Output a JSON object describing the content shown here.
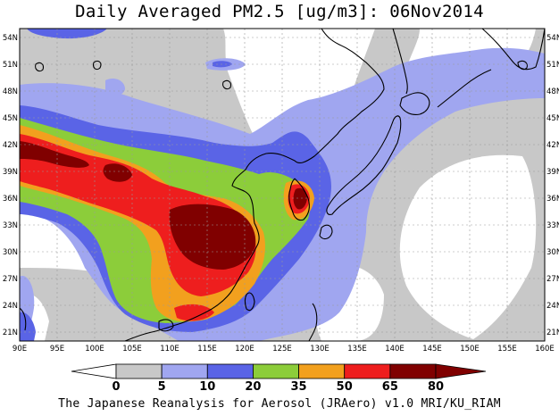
{
  "title": "Daily Averaged PM2.5 [ug/m3]: 06Nov2014",
  "footer": "The Japanese Reanalysis for Aerosol (JRAero) v1.0 MRI/KU_RIAM",
  "map": {
    "lon_range": [
      90,
      160
    ],
    "lat_range": [
      20,
      55
    ],
    "lon_labels": [
      "90E",
      "95E",
      "100E",
      "105E",
      "110E",
      "115E",
      "120E",
      "125E",
      "130E",
      "135E",
      "140E",
      "145E",
      "150E",
      "155E",
      "160E"
    ],
    "lat_labels": [
      "54N",
      "51N",
      "48N",
      "45N",
      "42N",
      "39N",
      "36N",
      "33N",
      "30N",
      "27N",
      "24N",
      "21N"
    ],
    "lat_values": [
      54,
      51,
      48,
      45,
      42,
      39,
      36,
      33,
      30,
      27,
      24,
      21
    ]
  },
  "colorbar": {
    "labels": [
      "0",
      "5",
      "10",
      "20",
      "35",
      "50",
      "65",
      "80"
    ],
    "colors": [
      "#ffffff",
      "#c8c8c8",
      "#a0a6f0",
      "#5a64e6",
      "#8ccd3a",
      "#f2a01e",
      "#ee1e1e",
      "#800000"
    ]
  }
}
